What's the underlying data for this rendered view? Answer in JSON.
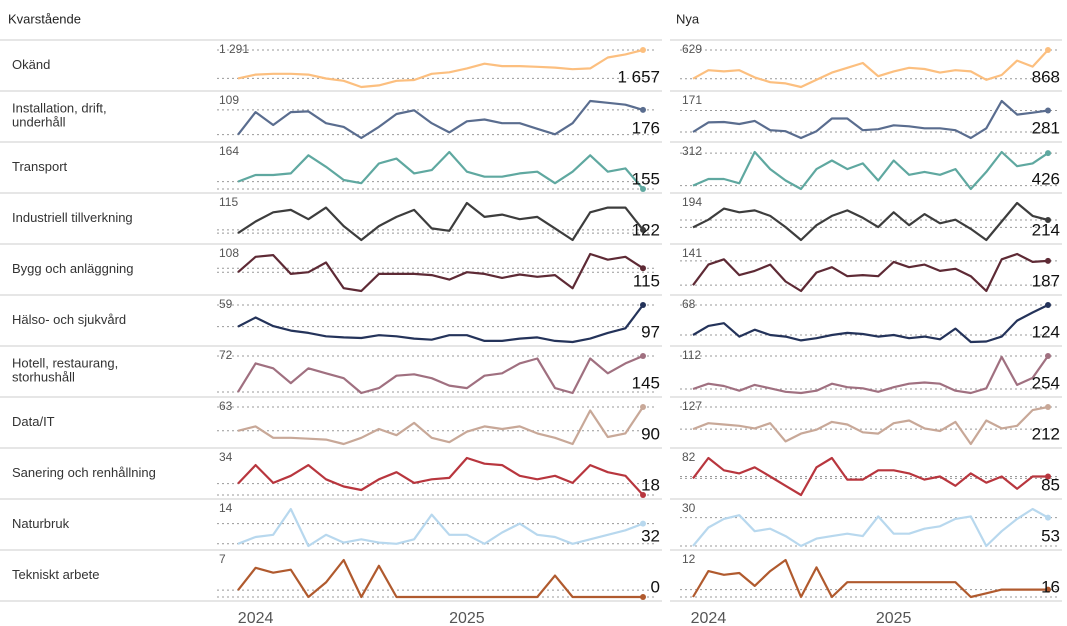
{
  "chart_data": [
    {
      "type": "line",
      "title": "Kvarstående",
      "categories": [
        null,
        "2024",
        null,
        null,
        null,
        null,
        null,
        null,
        null,
        null,
        null,
        null,
        null,
        "2025",
        null,
        null,
        null,
        null,
        null,
        null,
        null,
        null,
        null,
        null
      ],
      "series": [
        {
          "name": "Okänd",
          "color": "#fcbf7f",
          "values": [
            1291,
            1340,
            1350,
            1350,
            1340,
            1290,
            1260,
            1180,
            1200,
            1260,
            1270,
            1350,
            1370,
            1420,
            1480,
            1450,
            1450,
            1440,
            1430,
            1410,
            1420,
            1560,
            1600,
            1657
          ],
          "value_labels": [
            "1 291",
            null,
            null,
            null,
            null,
            null,
            null,
            null,
            null,
            null,
            null,
            null,
            null,
            null,
            null,
            null,
            null,
            null,
            null,
            null,
            null,
            null,
            null,
            "1 657"
          ]
        },
        {
          "name": "Installation, drift, underhåll",
          "color": "#5a6d8f",
          "values": [
            109,
            170,
            135,
            170,
            172,
            140,
            130,
            100,
            130,
            165,
            175,
            140,
            115,
            145,
            150,
            140,
            140,
            125,
            110,
            140,
            200,
            195,
            190,
            176
          ]
        },
        {
          "name": "Transport",
          "color": "#5fa8a0",
          "values": [
            164,
            172,
            172,
            174,
            196,
            182,
            166,
            162,
            186,
            192,
            174,
            178,
            200,
            176,
            170,
            170,
            174,
            176,
            162,
            176,
            196,
            176,
            180,
            155
          ]
        },
        {
          "name": "Industriell tillverkning",
          "color": "#3d3d3d",
          "values": [
            115,
            140,
            160,
            165,
            145,
            170,
            130,
            100,
            130,
            150,
            165,
            125,
            120,
            180,
            150,
            155,
            145,
            150,
            125,
            100,
            160,
            170,
            170,
            122
          ]
        },
        {
          "name": "Bygg och anläggning",
          "color": "#5e2a35",
          "values": [
            108,
            135,
            138,
            105,
            108,
            125,
            80,
            75,
            105,
            105,
            105,
            103,
            95,
            108,
            105,
            98,
            104,
            100,
            103,
            80,
            140,
            130,
            135,
            115
          ]
        },
        {
          "name": "Hälso- och sjukvård",
          "color": "#24335a",
          "values": [
            59,
            75,
            60,
            52,
            48,
            42,
            40,
            39,
            44,
            42,
            38,
            36,
            44,
            44,
            34,
            34,
            38,
            40,
            34,
            32,
            38,
            48,
            56,
            97
          ]
        },
        {
          "name": "Hotell, restaurang, storhushåll",
          "color": "#a07080",
          "values": [
            72,
            130,
            120,
            90,
            120,
            110,
            100,
            70,
            80,
            105,
            108,
            100,
            85,
            80,
            105,
            110,
            130,
            140,
            80,
            70,
            140,
            110,
            130,
            145
          ]
        },
        {
          "name": "Data/IT",
          "color": "#c8a898",
          "values": [
            63,
            68,
            55,
            55,
            54,
            53,
            48,
            55,
            65,
            58,
            72,
            55,
            50,
            62,
            68,
            65,
            68,
            60,
            55,
            48,
            86,
            56,
            60,
            90
          ]
        },
        {
          "name": "Sanering och renhållning",
          "color": "#b8363e",
          "values": [
            34,
            60,
            35,
            45,
            60,
            40,
            30,
            25,
            40,
            50,
            35,
            40,
            42,
            70,
            62,
            60,
            45,
            40,
            45,
            35,
            60,
            50,
            45,
            18
          ]
        },
        {
          "name": "Naturbruk",
          "color": "#b8d8ee",
          "values": [
            14,
            20,
            22,
            45,
            12,
            22,
            15,
            18,
            15,
            14,
            18,
            40,
            22,
            22,
            14,
            24,
            32,
            22,
            20,
            14,
            18,
            22,
            26,
            32
          ]
        },
        {
          "name": "Tekniskt arbete",
          "color": "#b05a2e",
          "values": [
            7,
            30,
            25,
            28,
            0,
            15,
            38,
            0,
            32,
            0,
            0,
            0,
            0,
            0,
            0,
            0,
            0,
            0,
            22,
            0,
            0,
            0,
            0,
            0
          ]
        }
      ]
    },
    {
      "type": "line",
      "title": "Nya",
      "categories": [
        null,
        "2024",
        null,
        null,
        null,
        null,
        null,
        null,
        null,
        null,
        null,
        null,
        null,
        "2025",
        null,
        null,
        null,
        null,
        null,
        null,
        null,
        null,
        null,
        null
      ],
      "series": [
        {
          "color": "#fcbf7f",
          "values": [
            629,
            700,
            690,
            700,
            640,
            600,
            590,
            560,
            620,
            680,
            720,
            760,
            650,
            690,
            720,
            710,
            680,
            700,
            690,
            620,
            660,
            780,
            730,
            868
          ]
        },
        {
          "color": "#5a6d8f",
          "values": [
            171,
            220,
            222,
            212,
            228,
            180,
            175,
            140,
            175,
            240,
            240,
            180,
            185,
            205,
            200,
            190,
            190,
            180,
            140,
            190,
            330,
            260,
            270,
            281
          ]
        },
        {
          "color": "#5fa8a0",
          "values": [
            312,
            335,
            335,
            320,
            430,
            370,
            330,
            300,
            370,
            400,
            370,
            390,
            330,
            400,
            350,
            360,
            350,
            370,
            300,
            360,
            430,
            380,
            390,
            426
          ]
        },
        {
          "color": "#3d3d3d",
          "values": [
            194,
            215,
            245,
            235,
            240,
            225,
            195,
            160,
            200,
            225,
            240,
            220,
            195,
            235,
            200,
            230,
            205,
            215,
            190,
            160,
            210,
            260,
            225,
            214
          ]
        },
        {
          "color": "#5e2a35",
          "values": [
            141,
            180,
            190,
            160,
            168,
            180,
            148,
            130,
            165,
            175,
            158,
            160,
            158,
            185,
            175,
            180,
            168,
            172,
            158,
            130,
            190,
            200,
            185,
            187
          ]
        },
        {
          "color": "#24335a",
          "values": [
            68,
            85,
            90,
            65,
            78,
            68,
            65,
            58,
            62,
            68,
            72,
            70,
            65,
            68,
            62,
            65,
            60,
            80,
            55,
            56,
            65,
            95,
            110,
            124
          ]
        },
        {
          "color": "#a07080",
          "values": [
            112,
            135,
            125,
            105,
            130,
            115,
            100,
            95,
            105,
            135,
            120,
            115,
            100,
            120,
            135,
            140,
            135,
            105,
            95,
            115,
            250,
            130,
            160,
            254
          ]
        },
        {
          "color": "#c8a898",
          "values": [
            127,
            150,
            145,
            140,
            130,
            150,
            80,
            110,
            125,
            155,
            145,
            115,
            110,
            150,
            160,
            130,
            120,
            155,
            70,
            160,
            130,
            140,
            200,
            212
          ]
        },
        {
          "color": "#b8363e",
          "values": [
            82,
            115,
            95,
            90,
            100,
            85,
            70,
            55,
            100,
            115,
            80,
            80,
            95,
            95,
            90,
            80,
            85,
            70,
            90,
            75,
            85,
            65,
            85,
            85
          ]
        },
        {
          "color": "#b8d8ee",
          "values": [
            30,
            45,
            52,
            55,
            42,
            44,
            38,
            30,
            36,
            38,
            40,
            38,
            54,
            40,
            40,
            44,
            46,
            52,
            54,
            30,
            42,
            52,
            60,
            53
          ]
        },
        {
          "color": "#b05a2e",
          "values": [
            12,
            26,
            24,
            25,
            18,
            26,
            32,
            12,
            28,
            12,
            20,
            20,
            20,
            20,
            20,
            20,
            20,
            20,
            12,
            14,
            16,
            16,
            16,
            16
          ]
        }
      ]
    }
  ]
}
